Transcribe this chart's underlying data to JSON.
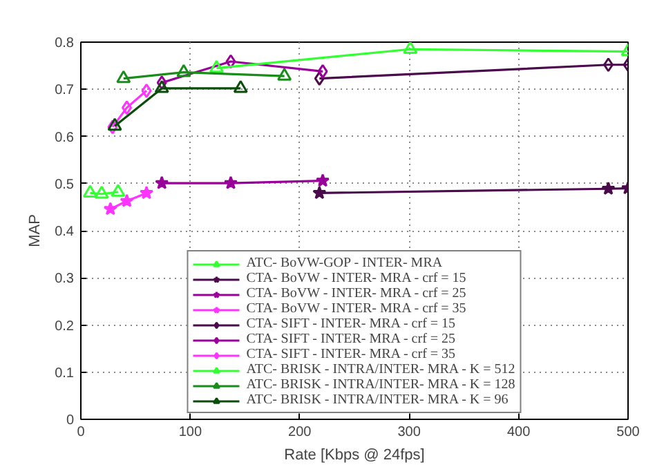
{
  "chart_data": {
    "type": "line",
    "xlabel": "Rate [Kbps @ 24fps]",
    "ylabel": "MAP",
    "xlim": [
      0,
      500
    ],
    "ylim": [
      0,
      0.8
    ],
    "xticks": [
      0,
      100,
      200,
      300,
      400,
      500
    ],
    "yticks": [
      0,
      0.1,
      0.2,
      0.3,
      0.4,
      0.5,
      0.6,
      0.7,
      0.8
    ],
    "grid": true,
    "legend": "bottom",
    "line_style": "solid",
    "series": [
      {
        "name": "ATC- BoVW-GOP - INTER- MRA",
        "color": "#33ff33",
        "marker": "triangle",
        "x": [
          8.5,
          19,
          34
        ],
        "values": [
          0.48,
          0.478,
          0.482
        ]
      },
      {
        "name": "CTA- BoVW - INTER- MRA - crf = 15",
        "color": "#4b0a4b",
        "marker": "star",
        "x": [
          218,
          482,
          500
        ],
        "values": [
          0.48,
          0.489,
          0.49
        ]
      },
      {
        "name": "CTA- BoVW - INTER- MRA - crf = 25",
        "color": "#990099",
        "marker": "star",
        "x": [
          74,
          137,
          221
        ],
        "values": [
          0.501,
          0.501,
          0.506
        ]
      },
      {
        "name": "CTA- BoVW - INTER- MRA - crf = 35",
        "color": "#ff33ff",
        "marker": "star",
        "x": [
          27,
          42,
          60
        ],
        "values": [
          0.446,
          0.463,
          0.48
        ]
      },
      {
        "name": "CTA- SIFT - INTER- MRA - crf = 15",
        "color": "#4b0a4b",
        "marker": "diamond",
        "x": [
          218,
          482,
          500
        ],
        "values": [
          0.723,
          0.752,
          0.752
        ]
      },
      {
        "name": "CTA- SIFT - INTER- MRA - crf = 25",
        "color": "#990099",
        "marker": "diamond",
        "x": [
          74,
          137,
          221
        ],
        "values": [
          0.714,
          0.759,
          0.738
        ]
      },
      {
        "name": "CTA- SIFT - INTER- MRA - crf = 35",
        "color": "#ff33ff",
        "marker": "diamond",
        "x": [
          29,
          42,
          60
        ],
        "values": [
          0.62,
          0.661,
          0.697
        ]
      },
      {
        "name": "ATC- BRISK - INTRA/INTER- MRA - K = 512",
        "color": "#33ff33",
        "marker": "triangle",
        "x": [
          124,
          301,
          500
        ],
        "values": [
          0.745,
          0.785,
          0.78
        ]
      },
      {
        "name": "ATC- BRISK - INTRA/INTER- MRA - K = 128",
        "color": "#1a8c1a",
        "marker": "triangle",
        "x": [
          39,
          94,
          186
        ],
        "values": [
          0.723,
          0.736,
          0.728
        ]
      },
      {
        "name": "ATC- BRISK - INTRA/INTER- MRA - K = 96",
        "color": "#0a4d0a",
        "marker": "triangle",
        "x": [
          31,
          74,
          146
        ],
        "values": [
          0.622,
          0.702,
          0.702
        ]
      }
    ]
  }
}
